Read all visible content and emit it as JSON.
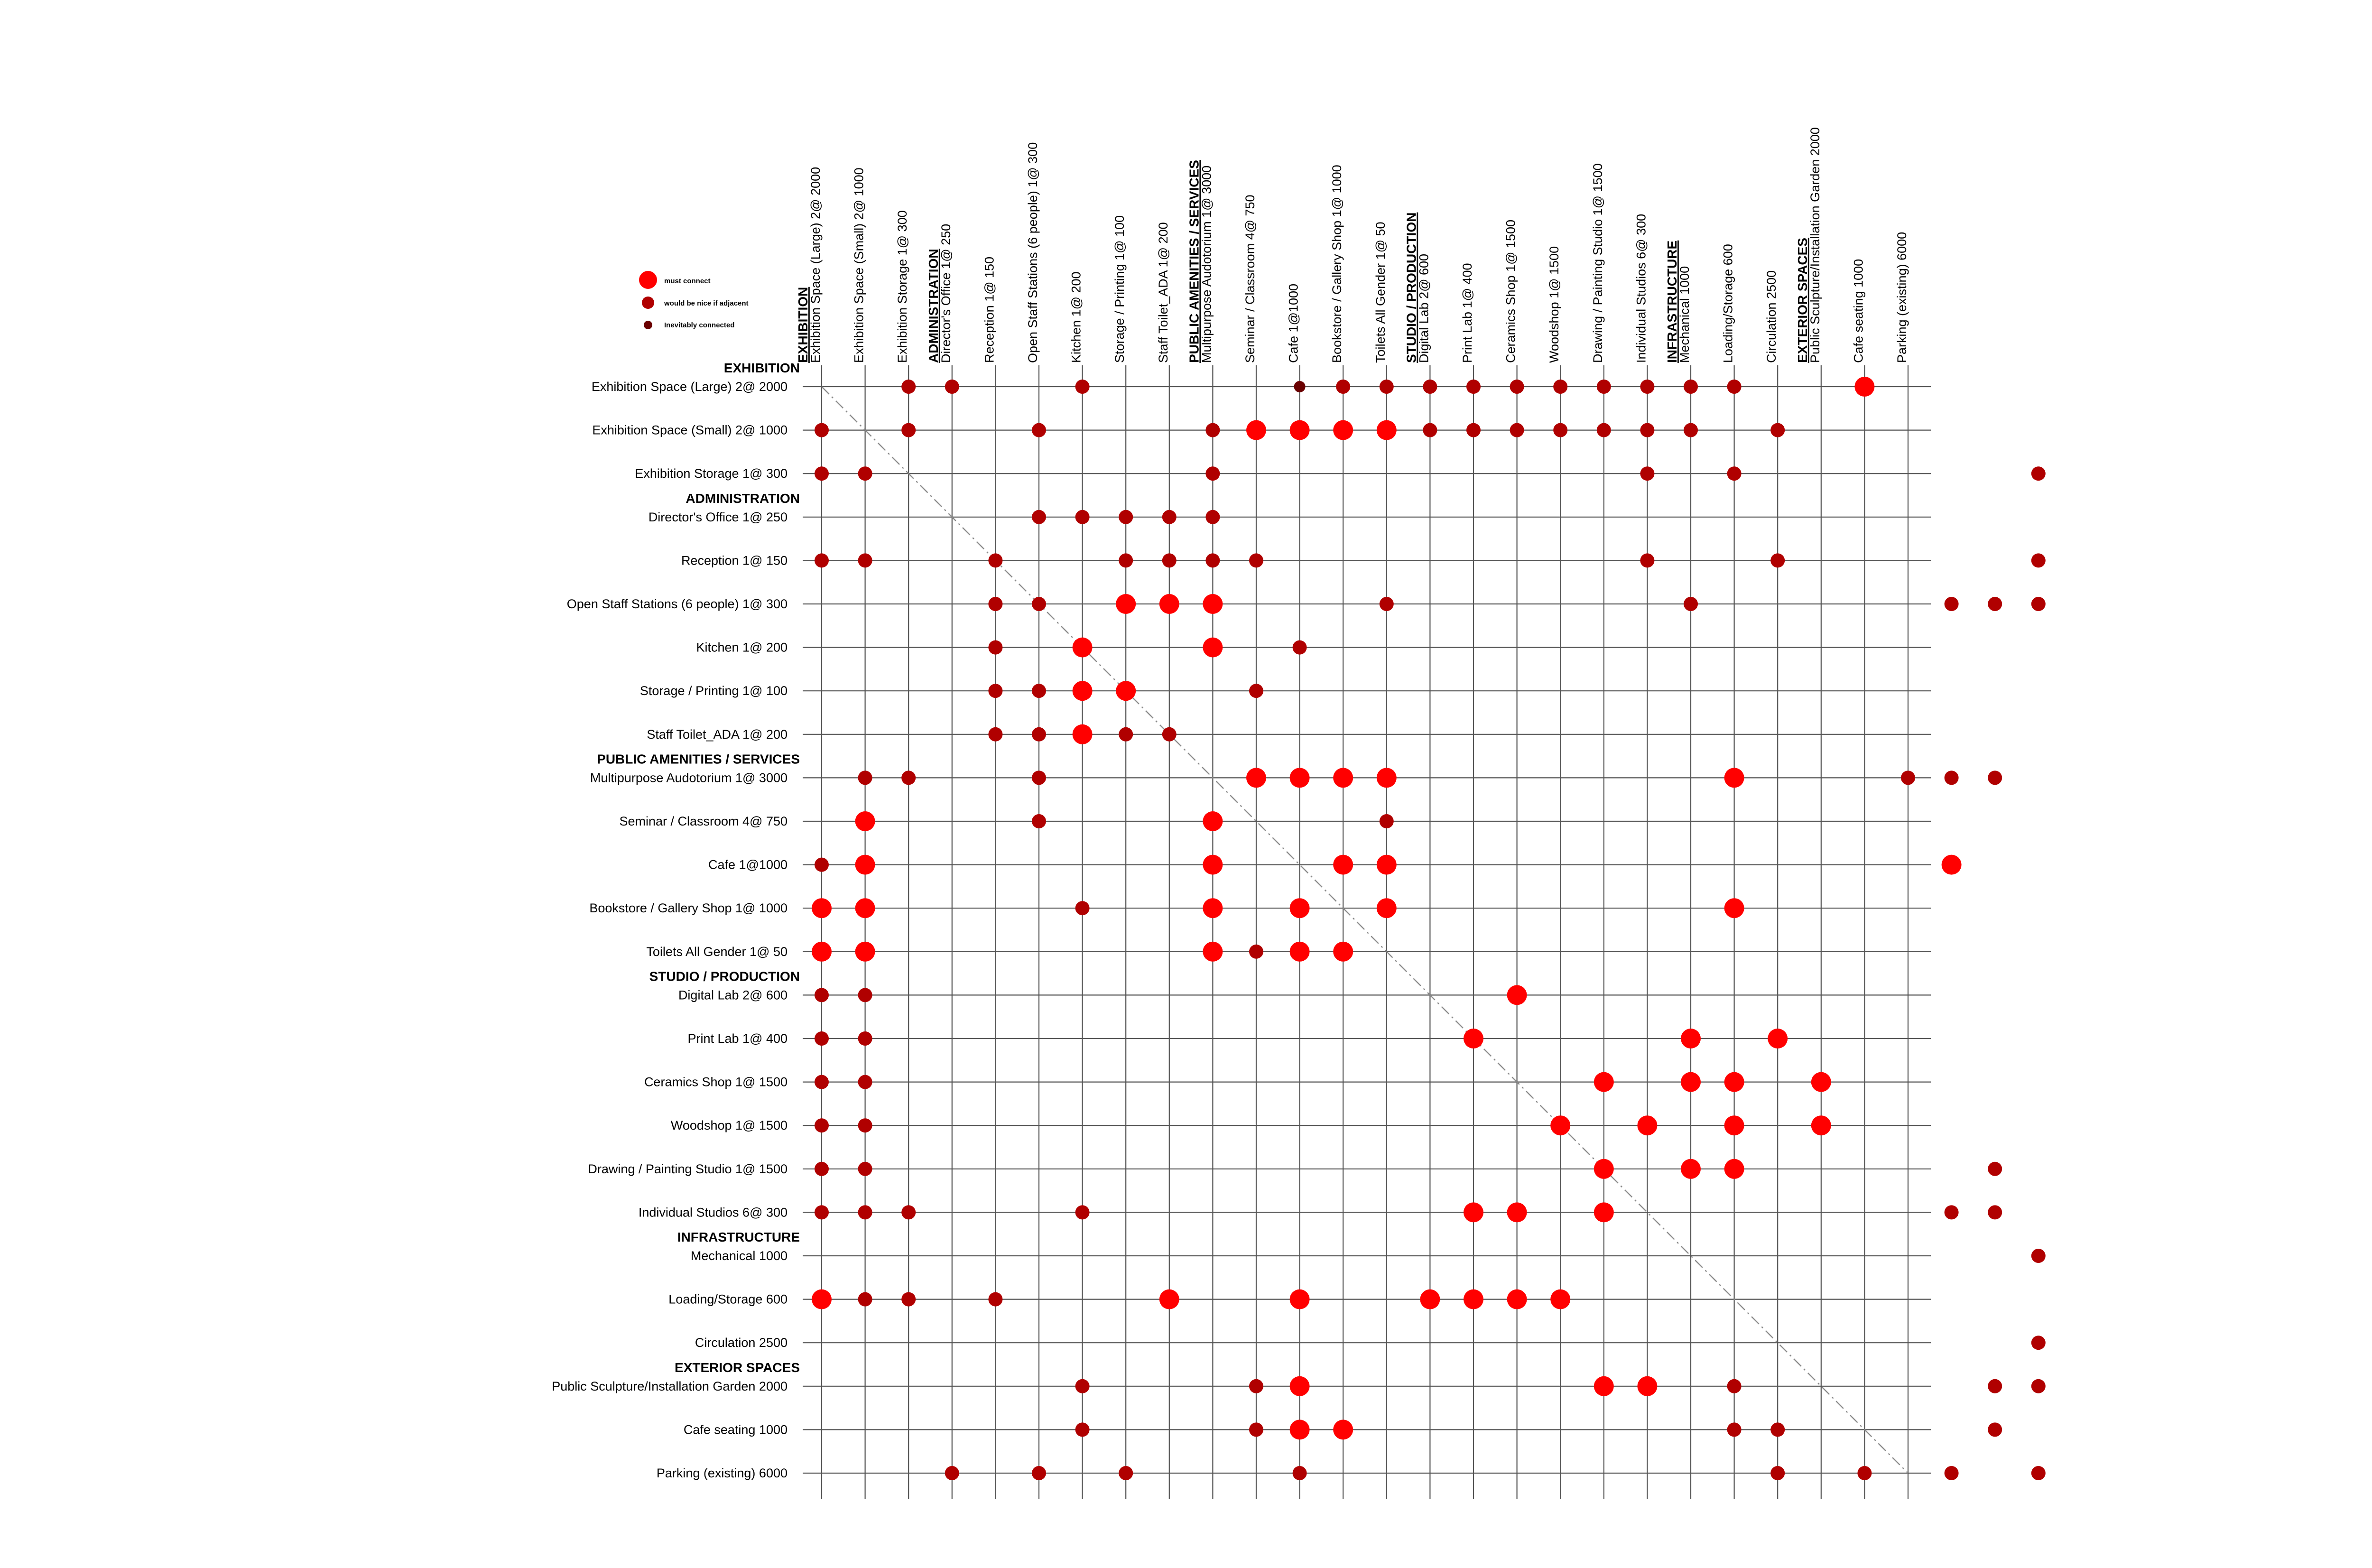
{
  "legend": [
    {
      "key": "must",
      "label": "must connect",
      "color": "#ff0000"
    },
    {
      "key": "nice",
      "label": "would be nice if adjacent",
      "color": "#b00000"
    },
    {
      "key": "inev",
      "label": "Inevitably connected",
      "color": "#6a0000"
    }
  ],
  "items": [
    {
      "type": "header",
      "label": "EXHIBITION"
    },
    {
      "type": "space",
      "label": "Exhibition Space (Large) 2@ 2000"
    },
    {
      "type": "space",
      "label": "Exhibition Space (Small) 2@ 1000"
    },
    {
      "type": "space",
      "label": "Exhibition Storage 1@ 300"
    },
    {
      "type": "header",
      "label": "ADMINISTRATION"
    },
    {
      "type": "space",
      "label": "Director's Office 1@ 250"
    },
    {
      "type": "space",
      "label": "Reception 1@ 150"
    },
    {
      "type": "space",
      "label": "Open Staff Stations (6 people) 1@ 300"
    },
    {
      "type": "space",
      "label": "Kitchen 1@ 200"
    },
    {
      "type": "space",
      "label": "Storage / Printing 1@ 100"
    },
    {
      "type": "space",
      "label": "Staff Toilet_ADA 1@ 200"
    },
    {
      "type": "header",
      "label": "PUBLIC AMENITIES / SERVICES"
    },
    {
      "type": "space",
      "label": "Multipurpose Audotorium 1@ 3000"
    },
    {
      "type": "space",
      "label": "Seminar / Classroom 4@ 750"
    },
    {
      "type": "space",
      "label": "Cafe 1@1000"
    },
    {
      "type": "space",
      "label": "Bookstore / Gallery Shop 1@ 1000"
    },
    {
      "type": "space",
      "label": "Toilets All Gender 1@ 50"
    },
    {
      "type": "header",
      "label": "STUDIO / PRODUCTION"
    },
    {
      "type": "space",
      "label": "Digital Lab 2@ 600"
    },
    {
      "type": "space",
      "label": "Print Lab 1@ 400"
    },
    {
      "type": "space",
      "label": "Ceramics Shop 1@ 1500"
    },
    {
      "type": "space",
      "label": "Woodshop 1@ 1500"
    },
    {
      "type": "space",
      "label": "Drawing / Painting Studio 1@ 1500"
    },
    {
      "type": "space",
      "label": "Individual Studios 6@ 300"
    },
    {
      "type": "header",
      "label": "INFRASTRUCTURE"
    },
    {
      "type": "space",
      "label": "Mechanical 1000"
    },
    {
      "type": "space",
      "label": "Loading/Storage 600"
    },
    {
      "type": "space",
      "label": "Circulation 2500"
    },
    {
      "type": "header",
      "label": "EXTERIOR SPACES"
    },
    {
      "type": "space",
      "label": "Public Sculpture/Installation Garden 2000"
    },
    {
      "type": "space",
      "label": "Cafe seating 1000"
    },
    {
      "type": "space",
      "label": "Parking (existing) 6000"
    }
  ],
  "matrix": [
    "__nn__n____innnnnnnnnn__m____",
    "n_n__n___nmmmmnnnnnnn_n______",
    "nn_______n_________n_n______n",
    "_____nnnnn___________________",
    "nn__n__nnnn________n__n_____n",
    "____nn_mmm___n______n_____nnn",
    "____n_m__m_n_________________",
    "____nnmm__n__________________",
    "____nnmnn____________________",
    "_nn__n____mmmm_______m___nnn_",
    "_m___n___m___n________________",
    "nm_______m__mm____________m__",
    "mm____n__m_m_m_______m_______",
    "mm_______mnmm________________",
    "nn______________m____________",
    "nn_____________m____m_m______",
    "nn________________m_mm_m_____",
    "nn_______________m_m_m_m_____",
    "nn________________m_mm_____n_",
    "nnn___n________mm_m_______nn_",
    "____________________________n",
    "mnn_n___m__m__mmmm___________",
    "____________________________n",
    "______n___nm______mm_n_____nn",
    "______n___nmm________nn____n_",
    "___n_n_n___n__________n_n_n_n"
  ]
}
